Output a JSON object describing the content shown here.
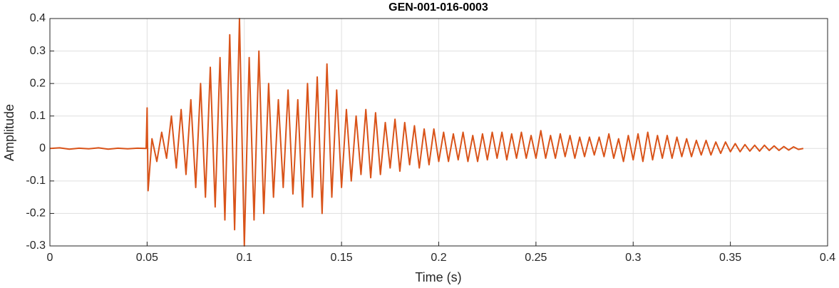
{
  "chart_data": {
    "type": "line",
    "title": "GEN-001-016-0003",
    "x_label": "Time (s)",
    "y_label": "Amplitude",
    "color": "#d95319",
    "grid": true,
    "xlim": [
      0,
      0.4
    ],
    "xticks": [
      0,
      0.05,
      0.1,
      0.15,
      0.2,
      0.25,
      0.3,
      0.35,
      0.4
    ],
    "ylim": [
      -0.3,
      0.4
    ],
    "yticks": [
      -0.3,
      -0.2,
      -0.1,
      0,
      0.1,
      0.2,
      0.3,
      0.4
    ],
    "x": [
      0,
      0.005,
      0.01,
      0.015,
      0.02,
      0.025,
      0.03,
      0.035,
      0.04,
      0.045,
      0.0495,
      0.05,
      0.0505,
      0.0525,
      0.055,
      0.0575,
      0.06,
      0.0625,
      0.065,
      0.0675,
      0.07,
      0.0725,
      0.075,
      0.0775,
      0.08,
      0.0825,
      0.085,
      0.0875,
      0.09,
      0.0925,
      0.095,
      0.0975,
      0.1,
      0.1025,
      0.105,
      0.1075,
      0.11,
      0.1125,
      0.115,
      0.1175,
      0.12,
      0.1225,
      0.125,
      0.1275,
      0.13,
      0.1325,
      0.135,
      0.1375,
      0.14,
      0.1425,
      0.145,
      0.1475,
      0.15,
      0.1525,
      0.155,
      0.1575,
      0.16,
      0.1625,
      0.165,
      0.1675,
      0.17,
      0.1725,
      0.175,
      0.1775,
      0.18,
      0.1825,
      0.185,
      0.1875,
      0.19,
      0.1925,
      0.195,
      0.1975,
      0.2,
      0.2025,
      0.205,
      0.2075,
      0.21,
      0.2125,
      0.215,
      0.2175,
      0.22,
      0.2225,
      0.225,
      0.2275,
      0.23,
      0.2325,
      0.235,
      0.2375,
      0.24,
      0.2425,
      0.245,
      0.2475,
      0.25,
      0.2525,
      0.255,
      0.2575,
      0.26,
      0.2625,
      0.265,
      0.2675,
      0.27,
      0.2725,
      0.275,
      0.2775,
      0.28,
      0.2825,
      0.285,
      0.2875,
      0.29,
      0.2925,
      0.295,
      0.2975,
      0.3,
      0.3025,
      0.305,
      0.3075,
      0.31,
      0.3125,
      0.315,
      0.3175,
      0.32,
      0.3225,
      0.325,
      0.3275,
      0.33,
      0.3325,
      0.335,
      0.3375,
      0.34,
      0.3425,
      0.345,
      0.3475,
      0.35,
      0.3525,
      0.355,
      0.3575,
      0.36,
      0.3625,
      0.365,
      0.3675,
      0.37,
      0.3725,
      0.375,
      0.3775,
      0.38,
      0.3825,
      0.385,
      0.3875
    ],
    "values": [
      0,
      0.002,
      -0.002,
      0.001,
      -0.001,
      0.002,
      -0.002,
      0.001,
      -0.001,
      0.001,
      0,
      0.125,
      -0.13,
      0.03,
      -0.04,
      0.05,
      -0.03,
      0.1,
      -0.06,
      0.12,
      -0.08,
      0.15,
      -0.12,
      0.2,
      -0.15,
      0.25,
      -0.18,
      0.28,
      -0.22,
      0.35,
      -0.25,
      0.4,
      -0.3,
      0.28,
      -0.22,
      0.3,
      -0.2,
      0.2,
      -0.15,
      0.15,
      -0.12,
      0.18,
      -0.14,
      0.15,
      -0.18,
      0.2,
      -0.15,
      0.22,
      -0.2,
      0.26,
      -0.15,
      0.18,
      -0.12,
      0.12,
      -0.1,
      0.1,
      -0.08,
      0.12,
      -0.09,
      0.11,
      -0.08,
      0.08,
      -0.06,
      0.09,
      -0.07,
      0.08,
      -0.05,
      0.07,
      -0.06,
      0.06,
      -0.05,
      0.06,
      -0.04,
      0.05,
      -0.04,
      0.045,
      -0.035,
      0.05,
      -0.04,
      0.04,
      -0.04,
      0.045,
      -0.035,
      0.05,
      -0.03,
      0.05,
      -0.035,
      0.045,
      -0.03,
      0.05,
      -0.03,
      0.04,
      -0.03,
      0.055,
      -0.03,
      0.04,
      -0.03,
      0.045,
      -0.025,
      0.04,
      -0.03,
      0.035,
      -0.025,
      0.035,
      -0.02,
      0.035,
      -0.025,
      0.045,
      -0.03,
      0.03,
      -0.04,
      0.04,
      -0.035,
      0.045,
      -0.04,
      0.05,
      -0.035,
      0.04,
      -0.03,
      0.04,
      -0.03,
      0.035,
      -0.025,
      0.03,
      -0.025,
      0.025,
      -0.02,
      0.025,
      -0.02,
      0.02,
      -0.015,
      0.02,
      -0.01,
      0.015,
      -0.01,
      0.012,
      -0.008,
      0.01,
      -0.008,
      0.01,
      -0.006,
      0.008,
      -0.006,
      0.006,
      -0.005,
      0.005,
      -0.003,
      0
    ]
  }
}
